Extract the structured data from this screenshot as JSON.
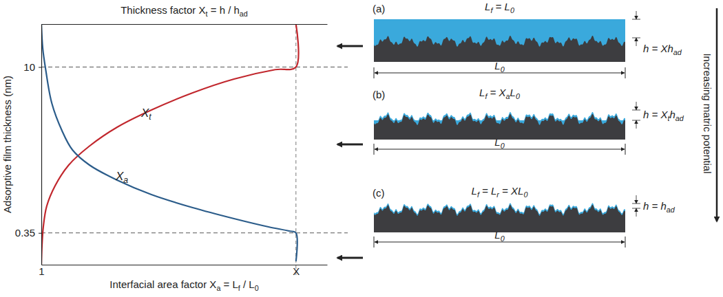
{
  "chart_data": {
    "type": "line",
    "x_label": [
      "Interfacial area factor X",
      "a",
      " = L",
      "f",
      " / L",
      "0"
    ],
    "x2_label": [
      "Thickness factor X",
      "t",
      " = h / h",
      "ad"
    ],
    "y_label": "Adsorptive film thickness (nm)",
    "xlim": [
      1,
      11.1
    ],
    "xticks": [
      1,
      {
        "value": 10,
        "label": "X"
      }
    ],
    "ylim": [
      -1.5,
      12.5
    ],
    "yticks": [
      0.35,
      10
    ],
    "grid": true,
    "series": [
      {
        "name": "Xt",
        "color": "#c1272d",
        "x": [
          1,
          1.02,
          1.07,
          1.19,
          1.49,
          1.97,
          2.7,
          3.68,
          4.89,
          6.35,
          7.81,
          9.27,
          10,
          10
        ],
        "values": [
          -1.5,
          -0.5,
          0.7,
          1.9,
          3.1,
          4.3,
          5.4,
          6.5,
          7.5,
          8.5,
          9.3,
          9.85,
          10,
          12.5
        ]
      },
      {
        "name": "Xa",
        "color": "#2b5c8a",
        "x": [
          1,
          1.05,
          1.15,
          1.37,
          1.73,
          2.1,
          2.7,
          3.68,
          4.89,
          6.35,
          7.81,
          9.03,
          9.76,
          10,
          10
        ],
        "values": [
          12.5,
          11.1,
          9.9,
          7.9,
          6.3,
          5.18,
          4.3,
          3.42,
          2.58,
          1.82,
          1.18,
          0.7,
          0.46,
          0.35,
          -1.3
        ]
      }
    ]
  },
  "diagram": {
    "panels": [
      {
        "label": "(a)",
        "film_length": [
          "L",
          "f",
          " = L",
          "0"
        ],
        "film_thickness": [
          "h = Xh",
          "ad"
        ],
        "base_length": [
          "L",
          "0"
        ]
      },
      {
        "label": "(b)",
        "film_length": [
          "L",
          "f",
          " = X",
          "a",
          "L",
          "0"
        ],
        "film_thickness": [
          "h = X",
          "t",
          "h",
          "ad"
        ],
        "base_length": [
          "L",
          "0"
        ]
      },
      {
        "label": "(c)",
        "film_length": [
          "L",
          "f",
          " = L",
          "r",
          " = XL",
          "0"
        ],
        "film_thickness": [
          "h = h",
          "ad"
        ],
        "base_length": [
          "L",
          "0"
        ]
      }
    ],
    "direction_label": "Increasing matric potential"
  }
}
